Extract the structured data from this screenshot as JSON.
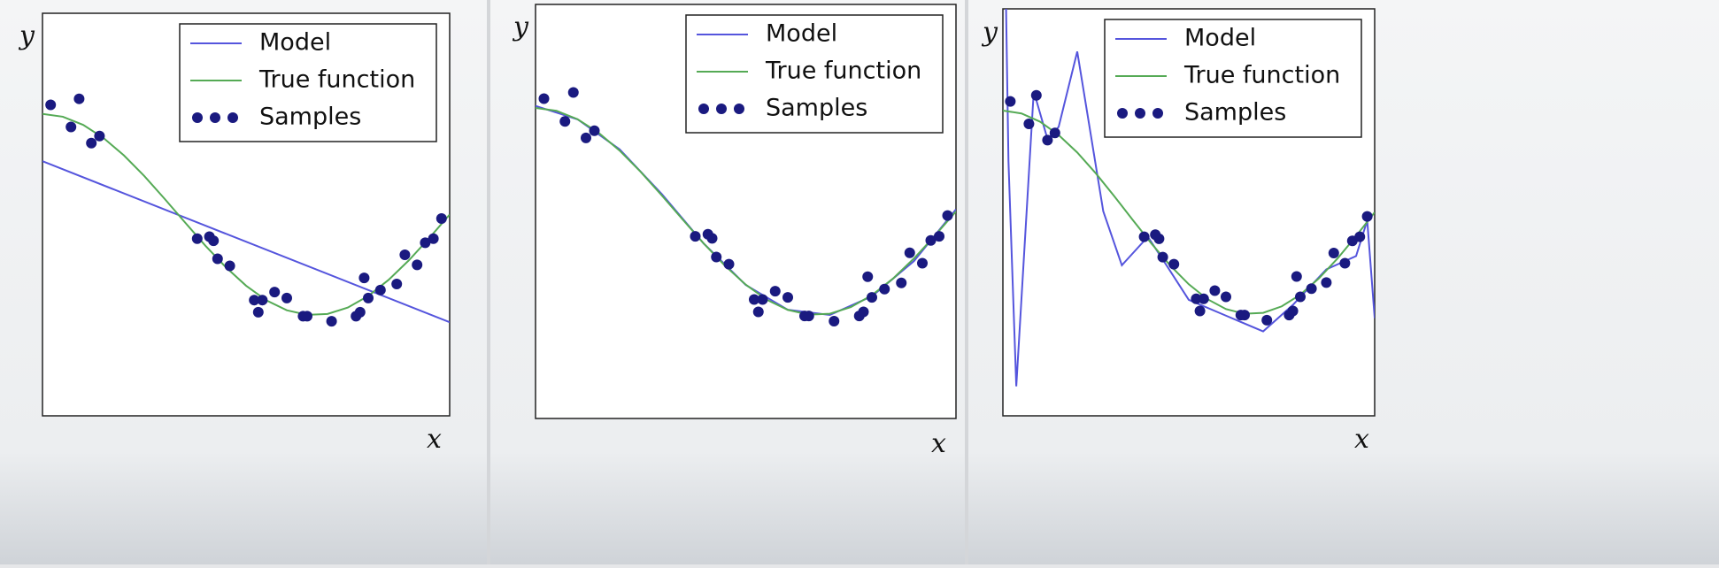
{
  "chart_data": [
    {
      "type": "line",
      "xlabel": "x",
      "ylabel": "y",
      "xlim": [
        0,
        1
      ],
      "ylim": [
        -2,
        2
      ],
      "legend": "upper right",
      "series": [
        {
          "name": "Model",
          "type": "line",
          "color": "#5555dd",
          "x": [
            0,
            1
          ],
          "values": [
            0.53,
            -1.07
          ]
        },
        {
          "name": "True function",
          "type": "line",
          "color": "#55aa55",
          "x": [
            0,
            0.05,
            0.1,
            0.15,
            0.2,
            0.25,
            0.3,
            0.35,
            0.4,
            0.45,
            0.5,
            0.55,
            0.6,
            0.65,
            0.7,
            0.75,
            0.8,
            0.85,
            0.9,
            0.95,
            1
          ],
          "values": [
            1,
            0.972,
            0.891,
            0.76,
            0.588,
            0.383,
            0.156,
            -0.078,
            -0.309,
            -0.522,
            -0.707,
            -0.853,
            -0.951,
            -0.997,
            -0.988,
            -0.924,
            -0.809,
            -0.649,
            -0.454,
            -0.233,
            0
          ]
        },
        {
          "name": "Samples",
          "type": "scatter",
          "color": "#1a1a80",
          "x": [
            0.02,
            0.07,
            0.09,
            0.12,
            0.14,
            0.38,
            0.41,
            0.42,
            0.43,
            0.46,
            0.52,
            0.53,
            0.54,
            0.57,
            0.6,
            0.64,
            0.65,
            0.71,
            0.77,
            0.78,
            0.79,
            0.8,
            0.83,
            0.87,
            0.89,
            0.92,
            0.94,
            0.96,
            0.98
          ],
          "values": [
            1.09,
            0.87,
            1.15,
            0.71,
            0.78,
            -0.24,
            -0.22,
            -0.26,
            -0.44,
            -0.51,
            -0.85,
            -0.97,
            -0.85,
            -0.77,
            -0.83,
            -1.01,
            -1.01,
            -1.06,
            -1.01,
            -0.97,
            -0.63,
            -0.83,
            -0.75,
            -0.69,
            -0.4,
            -0.5,
            -0.28,
            -0.24,
            -0.04
          ]
        }
      ]
    },
    {
      "type": "line",
      "xlabel": "x",
      "ylabel": "y",
      "xlim": [
        0,
        1
      ],
      "ylim": [
        -2,
        2
      ],
      "legend": "upper right",
      "series": [
        {
          "name": "Model",
          "type": "line",
          "color": "#5555dd",
          "x": [
            0,
            0.1,
            0.2,
            0.3,
            0.4,
            0.5,
            0.6,
            0.7,
            0.8,
            0.9,
            1
          ],
          "values": [
            1.02,
            0.89,
            0.6,
            0.17,
            -0.31,
            -0.71,
            -0.95,
            -1.0,
            -0.82,
            -0.48,
            0.02
          ]
        },
        {
          "name": "True function",
          "type": "line",
          "color": "#55aa55",
          "x": [
            0,
            0.05,
            0.1,
            0.15,
            0.2,
            0.25,
            0.3,
            0.35,
            0.4,
            0.45,
            0.5,
            0.55,
            0.6,
            0.65,
            0.7,
            0.75,
            0.8,
            0.85,
            0.9,
            0.95,
            1
          ],
          "values": [
            1,
            0.972,
            0.891,
            0.76,
            0.588,
            0.383,
            0.156,
            -0.078,
            -0.309,
            -0.522,
            -0.707,
            -0.853,
            -0.951,
            -0.997,
            -0.988,
            -0.924,
            -0.809,
            -0.649,
            -0.454,
            -0.233,
            0
          ]
        },
        {
          "name": "Samples",
          "type": "scatter",
          "color": "#1a1a80",
          "x": [
            0.02,
            0.07,
            0.09,
            0.12,
            0.14,
            0.38,
            0.41,
            0.42,
            0.43,
            0.46,
            0.52,
            0.53,
            0.54,
            0.57,
            0.6,
            0.64,
            0.65,
            0.71,
            0.77,
            0.78,
            0.79,
            0.8,
            0.83,
            0.87,
            0.89,
            0.92,
            0.94,
            0.96,
            0.98
          ],
          "values": [
            1.09,
            0.87,
            1.15,
            0.71,
            0.78,
            -0.24,
            -0.22,
            -0.26,
            -0.44,
            -0.51,
            -0.85,
            -0.97,
            -0.85,
            -0.77,
            -0.83,
            -1.01,
            -1.01,
            -1.06,
            -1.01,
            -0.97,
            -0.63,
            -0.83,
            -0.75,
            -0.69,
            -0.4,
            -0.5,
            -0.28,
            -0.24,
            -0.04
          ]
        }
      ]
    },
    {
      "type": "line",
      "xlabel": "x",
      "ylabel": "y",
      "xlim": [
        0,
        1
      ],
      "ylim": [
        -2,
        2
      ],
      "legend": "upper right",
      "series": [
        {
          "name": "Model",
          "type": "line",
          "color": "#5555dd",
          "x": [
            0,
            0.015,
            0.036,
            0.083,
            0.12,
            0.15,
            0.2,
            0.27,
            0.32,
            0.39,
            0.44,
            0.5,
            0.59,
            0.7,
            0.78,
            0.87,
            0.95,
            0.98,
            1
          ],
          "values": [
            4,
            0.5,
            -1.71,
            1.19,
            0.72,
            0.84,
            1.58,
            0.01,
            -0.52,
            -0.24,
            -0.52,
            -0.86,
            -1.0,
            -1.17,
            -0.91,
            -0.56,
            -0.43,
            -0.08,
            -1.04
          ]
        },
        {
          "name": "True function",
          "type": "line",
          "color": "#55aa55",
          "x": [
            0,
            0.05,
            0.1,
            0.15,
            0.2,
            0.25,
            0.3,
            0.35,
            0.4,
            0.45,
            0.5,
            0.55,
            0.6,
            0.65,
            0.7,
            0.75,
            0.8,
            0.85,
            0.9,
            0.95,
            1
          ],
          "values": [
            1,
            0.972,
            0.891,
            0.76,
            0.588,
            0.383,
            0.156,
            -0.078,
            -0.309,
            -0.522,
            -0.707,
            -0.853,
            -0.951,
            -0.997,
            -0.988,
            -0.924,
            -0.809,
            -0.649,
            -0.454,
            -0.233,
            0
          ]
        },
        {
          "name": "Samples",
          "type": "scatter",
          "color": "#1a1a80",
          "x": [
            0.02,
            0.07,
            0.09,
            0.12,
            0.14,
            0.38,
            0.41,
            0.42,
            0.43,
            0.46,
            0.52,
            0.53,
            0.54,
            0.57,
            0.6,
            0.64,
            0.65,
            0.71,
            0.77,
            0.78,
            0.79,
            0.8,
            0.83,
            0.87,
            0.89,
            0.92,
            0.94,
            0.96,
            0.98
          ],
          "values": [
            1.09,
            0.87,
            1.15,
            0.71,
            0.78,
            -0.24,
            -0.22,
            -0.26,
            -0.44,
            -0.51,
            -0.85,
            -0.97,
            -0.85,
            -0.77,
            -0.83,
            -1.01,
            -1.01,
            -1.06,
            -1.01,
            -0.97,
            -0.63,
            -0.83,
            -0.75,
            -0.69,
            -0.4,
            -0.5,
            -0.28,
            -0.24,
            -0.04
          ]
        }
      ]
    }
  ]
}
